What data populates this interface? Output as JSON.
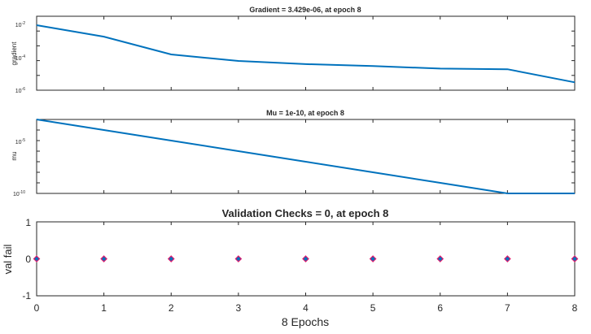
{
  "chart_data": [
    {
      "type": "line",
      "title": "Gradient = 3.429e-06, at epoch 8",
      "ylabel": "gradient",
      "xlabel": "",
      "yscale": "log",
      "xlim": [
        0,
        8
      ],
      "ylim": [
        1e-06,
        0.1
      ],
      "yticks": [
        {
          "base": "10",
          "exp": "-2"
        },
        {
          "base": "10",
          "exp": "-4"
        },
        {
          "base": "10",
          "exp": "-6"
        }
      ],
      "x": [
        0,
        1,
        2,
        3,
        4,
        5,
        6,
        7,
        8
      ],
      "series": [
        {
          "name": "gradient",
          "color": "#0072bd",
          "values": [
            0.025,
            0.0042,
            0.00026,
            9.5e-05,
            5.8e-05,
            4.3e-05,
            2.9e-05,
            2.6e-05,
            3.429e-06
          ]
        }
      ]
    },
    {
      "type": "line",
      "title": "Mu = 1e-10, at epoch 8",
      "ylabel": "mu",
      "xlabel": "",
      "yscale": "log",
      "xlim": [
        0,
        8
      ],
      "ylim": [
        1e-10,
        0.001
      ],
      "yticks": [
        {
          "base": "10",
          "exp": "-5"
        },
        {
          "base": "10",
          "exp": "-10"
        }
      ],
      "x": [
        0,
        1,
        2,
        3,
        4,
        5,
        6,
        7,
        8
      ],
      "series": [
        {
          "name": "mu",
          "color": "#0072bd",
          "values": [
            0.001,
            0.0001,
            1e-05,
            1e-06,
            1e-07,
            1e-08,
            1e-09,
            1e-10,
            1e-10
          ]
        }
      ]
    },
    {
      "type": "scatter",
      "title": "Validation Checks = 0, at epoch 8",
      "ylabel": "val fail",
      "xlabel": "8 Epochs",
      "xlim": [
        0,
        8
      ],
      "ylim": [
        -1,
        1
      ],
      "xticks": [
        "0",
        "1",
        "2",
        "3",
        "4",
        "5",
        "6",
        "7",
        "8"
      ],
      "yticks": [
        "1",
        "0",
        "-1"
      ],
      "x": [
        0,
        1,
        2,
        3,
        4,
        5,
        6,
        7,
        8
      ],
      "series": [
        {
          "name": "val fail",
          "marker": "diamond",
          "color": "#0072bd",
          "edge_color": "#e0196d",
          "values": [
            0,
            0,
            0,
            0,
            0,
            0,
            0,
            0,
            0
          ]
        }
      ]
    }
  ]
}
